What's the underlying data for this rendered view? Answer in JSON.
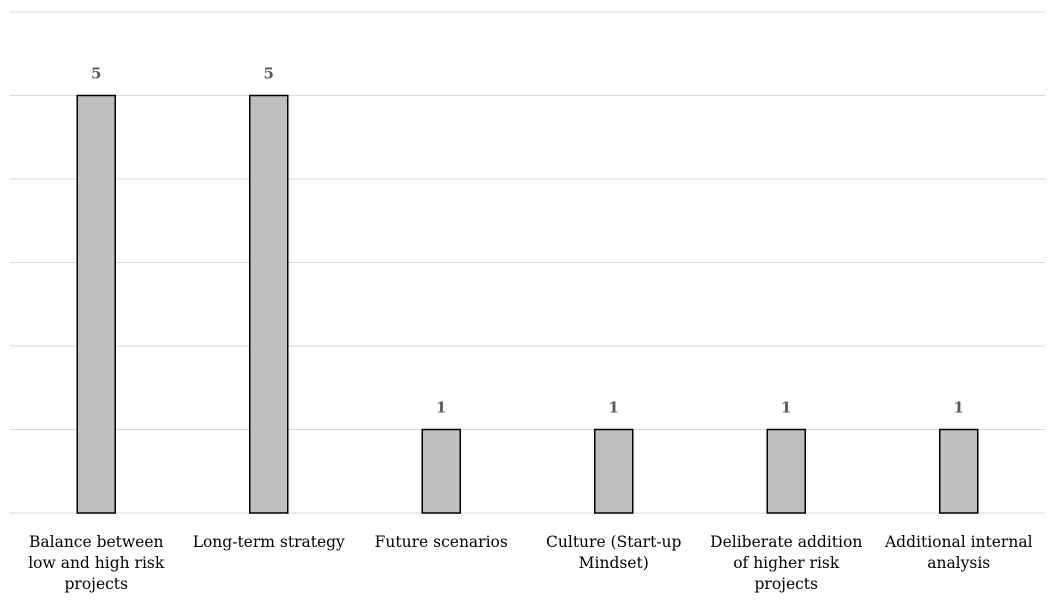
{
  "chart_data": {
    "type": "bar",
    "categories": [
      [
        "Balance between",
        "low and high risk",
        "projects"
      ],
      [
        "Long-term strategy"
      ],
      [
        "Future scenarios"
      ],
      [
        "Culture (Start-up",
        "Mindset)"
      ],
      [
        "Deliberate addition",
        "of higher risk",
        "projects"
      ],
      [
        "Additional internal",
        "analysis"
      ]
    ],
    "values": [
      5,
      5,
      1,
      1,
      1,
      1
    ],
    "ylim": [
      0,
      6
    ],
    "grid": true,
    "colors": {
      "bar_fill": "#bfbfbf",
      "bar_stroke": "#000000",
      "grid": "#d9d9d9",
      "value_label": "#595959"
    }
  }
}
